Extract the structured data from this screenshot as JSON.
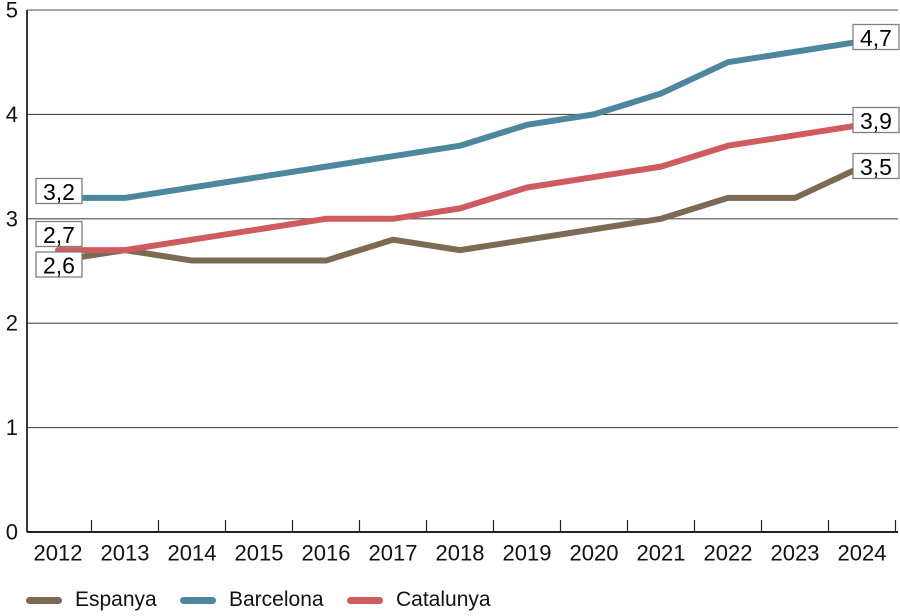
{
  "chart_data": {
    "type": "line",
    "title": "",
    "xlabel": "",
    "ylabel": "",
    "x": [
      2012,
      2013,
      2014,
      2015,
      2016,
      2017,
      2018,
      2019,
      2020,
      2021,
      2022,
      2023,
      2024
    ],
    "series": [
      {
        "name": "Espanya",
        "color": "#7d6a55",
        "values": [
          2.6,
          2.7,
          2.6,
          2.6,
          2.6,
          2.8,
          2.7,
          2.8,
          2.9,
          3.0,
          3.2,
          3.2,
          3.5
        ],
        "first_point_label": "2,6",
        "last_point_label": "3,5"
      },
      {
        "name": "Barcelona",
        "color": "#4d879e",
        "values": [
          3.2,
          3.2,
          3.3,
          3.4,
          3.5,
          3.6,
          3.7,
          3.9,
          4.0,
          4.2,
          4.5,
          4.6,
          4.7
        ],
        "first_point_label": "3,2",
        "last_point_label": "4,7"
      },
      {
        "name": "Catalunya",
        "color": "#cf5a5f",
        "values": [
          2.7,
          2.7,
          2.8,
          2.9,
          3.0,
          3.0,
          3.1,
          3.3,
          3.4,
          3.5,
          3.7,
          3.8,
          3.9
        ],
        "first_point_label": "2,7",
        "last_point_label": "3,9"
      }
    ],
    "ylim": [
      0,
      5
    ],
    "yticks": [
      0,
      1,
      2,
      3,
      4,
      5
    ],
    "grid": true,
    "legend_position": "bottom",
    "decimal_separator": ","
  },
  "colors": {
    "background": "#ffffff",
    "grid": "#4d4d4d",
    "axis": "#222222",
    "text": "#111111",
    "annotation_border": "#7f7f7f",
    "annotation_bg": "#ffffff"
  }
}
